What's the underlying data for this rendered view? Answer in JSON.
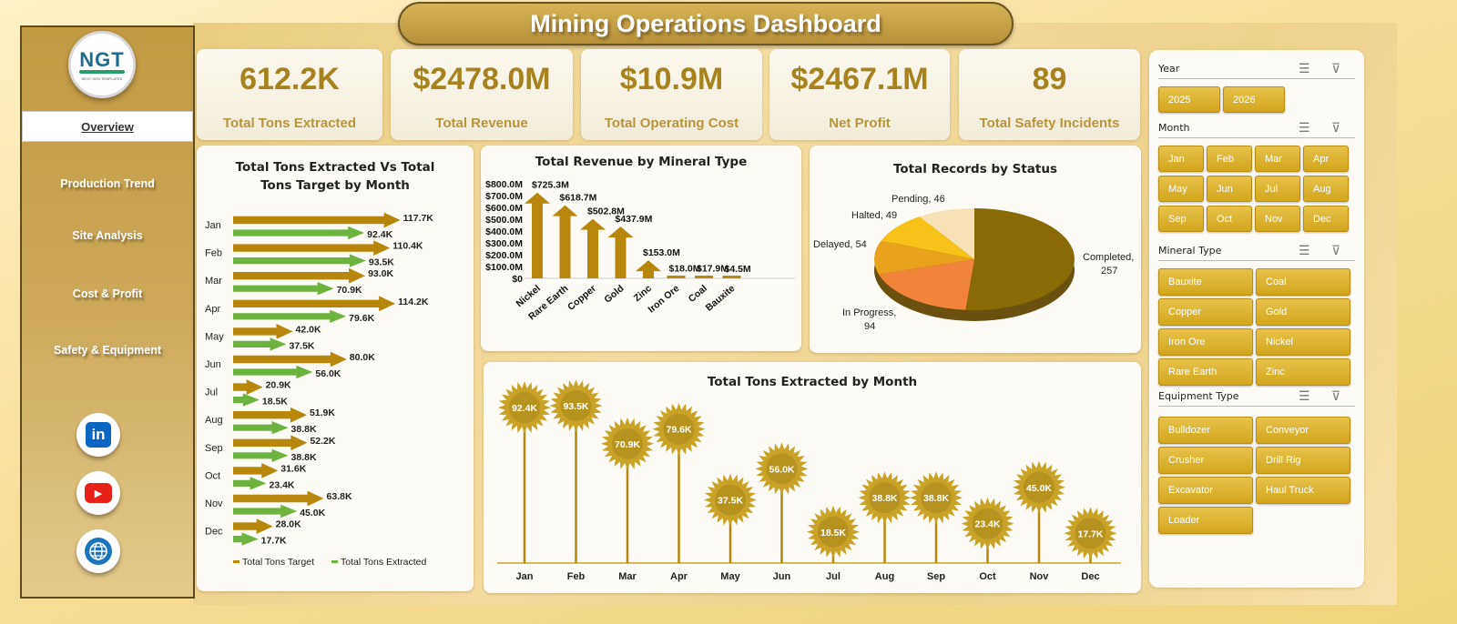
{
  "title": "Mining Operations Dashboard",
  "logo": {
    "text": "NGT",
    "subtext": "NEXT GEN TEMPLATES"
  },
  "nav": [
    {
      "label": "Overview",
      "active": true
    },
    {
      "label": "Production Trend"
    },
    {
      "label": "Site Analysis"
    },
    {
      "label": "Cost & Profit"
    },
    {
      "label": "Safety & Equipment"
    }
  ],
  "social": [
    {
      "icon": "linkedin-icon",
      "glyph": "in",
      "color": "#0a66c2"
    },
    {
      "icon": "youtube-icon",
      "glyph": "▶",
      "color": "#e62117"
    },
    {
      "icon": "globe-icon",
      "glyph": "🌐",
      "color": "#1b75bb"
    }
  ],
  "kpis": [
    {
      "value": "612.2K",
      "label": "Total Tons Extracted"
    },
    {
      "value": "$2478.0M",
      "label": "Total Revenue"
    },
    {
      "value": "$10.9M",
      "label": "Total Operating Cost"
    },
    {
      "value": "$2467.1M",
      "label": "Net Profit"
    },
    {
      "value": "89",
      "label": "Total Safety Incidents"
    }
  ],
  "filters": {
    "year": {
      "title": "Year",
      "options": [
        "2025",
        "2026"
      ]
    },
    "month": {
      "title": "Month",
      "options": [
        "Jan",
        "Feb",
        "Mar",
        "Apr",
        "May",
        "Jun",
        "Jul",
        "Aug",
        "Sep",
        "Oct",
        "Nov",
        "Dec"
      ]
    },
    "mineral": {
      "title": "Mineral Type",
      "options": [
        "Bauxite",
        "Coal",
        "Copper",
        "Gold",
        "Iron Ore",
        "Nickel",
        "Rare Earth",
        "Zinc"
      ]
    },
    "equipment": {
      "title": "Equipment Type",
      "options": [
        "Bulldozer",
        "Conveyor",
        "Crusher",
        "Drill Rig",
        "Excavator",
        "Haul Truck",
        "Loader"
      ]
    }
  },
  "chart_data": [
    {
      "type": "bar",
      "orientation": "horizontal",
      "title": "Total Tons Extracted Vs Total Tons Target by Month",
      "categories": [
        "Jan",
        "Feb",
        "Mar",
        "Apr",
        "May",
        "Jun",
        "Jul",
        "Aug",
        "Sep",
        "Oct",
        "Nov",
        "Dec"
      ],
      "series": [
        {
          "name": "Total Tons Target",
          "values": [
            117.7,
            110.4,
            93.0,
            114.2,
            42.0,
            80.0,
            20.9,
            51.9,
            52.2,
            31.6,
            63.8,
            28.0
          ],
          "labels": [
            "117.7K",
            "110.4K",
            "93.0K",
            "114.2K",
            "42.0K",
            "80.0K",
            "20.9K",
            "51.9K",
            "52.2K",
            "31.6K",
            "63.8K",
            "28.0K"
          ],
          "color": "#b8860b"
        },
        {
          "name": "Total Tons Extracted",
          "values": [
            92.4,
            93.5,
            70.9,
            79.6,
            37.5,
            56.0,
            18.5,
            38.8,
            38.8,
            23.4,
            45.0,
            17.7
          ],
          "labels": [
            "92.4K",
            "93.5K",
            "70.9K",
            "79.6K",
            "37.5K",
            "56.0K",
            "18.5K",
            "38.8K",
            "38.8K",
            "23.4K",
            "45.0K",
            "17.7K"
          ],
          "color": "#6db33f"
        }
      ],
      "legend": "bottom"
    },
    {
      "type": "bar",
      "title": "Total Revenue  by Mineral Type",
      "categories": [
        "Nickel",
        "Rare Earth",
        "Copper",
        "Gold",
        "Zinc",
        "Iron Ore",
        "Coal",
        "Bauxite"
      ],
      "values": [
        725.3,
        618.7,
        502.8,
        437.9,
        153.0,
        18.0,
        17.9,
        4.5
      ],
      "labels": [
        "$725.3M",
        "$618.7M",
        "$502.8M",
        "$437.9M",
        "$153.0M",
        "$18.0M",
        "$17.9M",
        "$4.5M"
      ],
      "yticks": [
        "$0",
        "$100.0M",
        "$200.0M",
        "$300.0M",
        "$400.0M",
        "$500.0M",
        "$600.0M",
        "$700.0M",
        "$800.0M"
      ],
      "ylim": [
        0,
        800
      ]
    },
    {
      "type": "pie",
      "title": "Total Records by Status",
      "slices": [
        {
          "label": "Completed",
          "value": 257,
          "text": "Completed,",
          "vtext": "257",
          "color": "#8a6a06"
        },
        {
          "label": "In Progress",
          "value": 94,
          "text": "In Progress,",
          "vtext": "94",
          "color": "#f0843a"
        },
        {
          "label": "Delayed",
          "value": 54,
          "text": "Delayed, 54",
          "color": "#e8a21c"
        },
        {
          "label": "Halted",
          "value": 49,
          "text": "Halted, 49",
          "color": "#f7c21a"
        },
        {
          "label": "Pending",
          "value": 46,
          "text": "Pending, 46",
          "color": "#f6e2b4"
        }
      ]
    },
    {
      "type": "line",
      "style": "lollipop",
      "title": "Total Tons Extracted by Month",
      "categories": [
        "Jan",
        "Feb",
        "Mar",
        "Apr",
        "May",
        "Jun",
        "Jul",
        "Aug",
        "Sep",
        "Oct",
        "Nov",
        "Dec"
      ],
      "values": [
        92.4,
        93.5,
        70.9,
        79.6,
        37.5,
        56.0,
        18.5,
        38.8,
        38.8,
        23.4,
        45.0,
        17.7
      ],
      "labels": [
        "92.4K",
        "93.5K",
        "70.9K",
        "79.6K",
        "37.5K",
        "56.0K",
        "18.5K",
        "38.8K",
        "38.8K",
        "23.4K",
        "45.0K",
        "17.7K"
      ]
    }
  ]
}
